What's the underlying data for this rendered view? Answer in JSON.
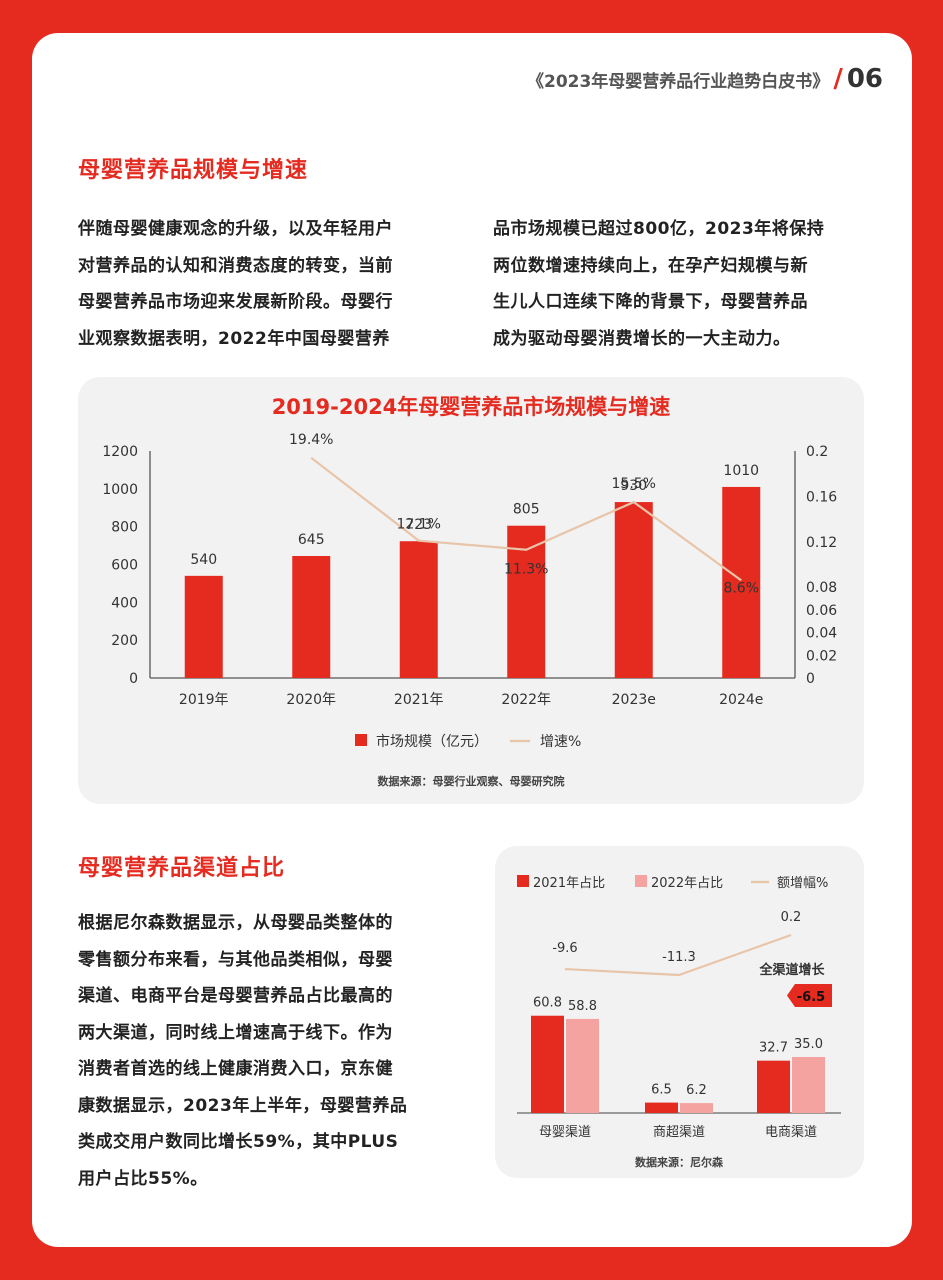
{
  "header": {
    "title": "《2023年母婴营养品行业趋势白皮书》",
    "page": "06"
  },
  "section1": {
    "title": "母婴营养品规模与增速",
    "col1": [
      "伴随母婴健康观念的升级，以及年轻用户",
      "对营养品的认知和消费态度的转变，当前",
      "母婴营养品市场迎来发展新阶段。母婴行",
      "业观察数据表明，2022年中国母婴营养"
    ],
    "col2": [
      "品市场规模已超过800亿，2023年将保持",
      "两位数增速持续向上，在孕产妇规模与新",
      "生儿人口连续下降的背景下，母婴营养品",
      "成为驱动母婴消费增长的一大主动力。"
    ]
  },
  "section2": {
    "title": "母婴营养品渠道占比",
    "lines": [
      "根据尼尔森数据显示，从母婴品类整体的",
      "零售额分布来看，与其他品类相似，母婴",
      "渠道、电商平台是母婴营养品占比最高的",
      "两大渠道，同时线上增速高于线下。作为",
      "消费者首选的线上健康消费入口，京东健",
      "康数据显示，2023年上半年，母婴营养品",
      "类成交用户数同比增长59%，其中PLUS",
      "用户占比55%。"
    ]
  },
  "chart_data": [
    {
      "type": "bar",
      "title": "2019-2024年母婴营养品市场规模与增速",
      "categories": [
        "2019年",
        "2020年",
        "2021年",
        "2022年",
        "2023e",
        "2024e"
      ],
      "series": [
        {
          "name": "市场规模（亿元）",
          "type": "bar",
          "values": [
            540,
            645,
            723,
            805,
            930,
            1010
          ],
          "color": "#e52a1f"
        },
        {
          "name": "增速%",
          "type": "line",
          "values": [
            null,
            0.194,
            0.121,
            0.113,
            0.155,
            0.086
          ],
          "labels": [
            "",
            "19.4%",
            "12.1%",
            "11.3%",
            "15.5%",
            "8.6%"
          ],
          "color": "#e8c4a8"
        }
      ],
      "ylim": [
        0,
        1200
      ],
      "yticks": [
        "0",
        "200",
        "400",
        "600",
        "800",
        "1000",
        "1200"
      ],
      "y2lim": [
        0,
        0.2
      ],
      "y2ticks": [
        "0",
        "0.02",
        "0.04",
        "0.06",
        "0.08",
        "0.12",
        "0.16",
        "0.2"
      ],
      "legend": "bottom",
      "source": "数据来源：母婴行业观察、母婴研究院"
    },
    {
      "type": "bar",
      "categories": [
        "母婴渠道",
        "商超渠道",
        "电商渠道"
      ],
      "series": [
        {
          "name": "2021年占比",
          "type": "bar",
          "values": [
            60.8,
            6.5,
            32.7
          ],
          "color": "#e52a1f"
        },
        {
          "name": "2022年占比",
          "type": "bar",
          "values": [
            58.8,
            6.2,
            35.0
          ],
          "labels": [
            "58.8",
            "6.2",
            "35.0"
          ],
          "color": "#f5a3a0"
        },
        {
          "name": "额增幅%",
          "type": "line",
          "values": [
            -9.6,
            -11.3,
            0.2
          ],
          "color": "#e8c4a8"
        }
      ],
      "legend": "top",
      "callout": {
        "label": "全渠道增长",
        "value": "-6.5"
      },
      "source": "数据来源：尼尔森"
    }
  ]
}
